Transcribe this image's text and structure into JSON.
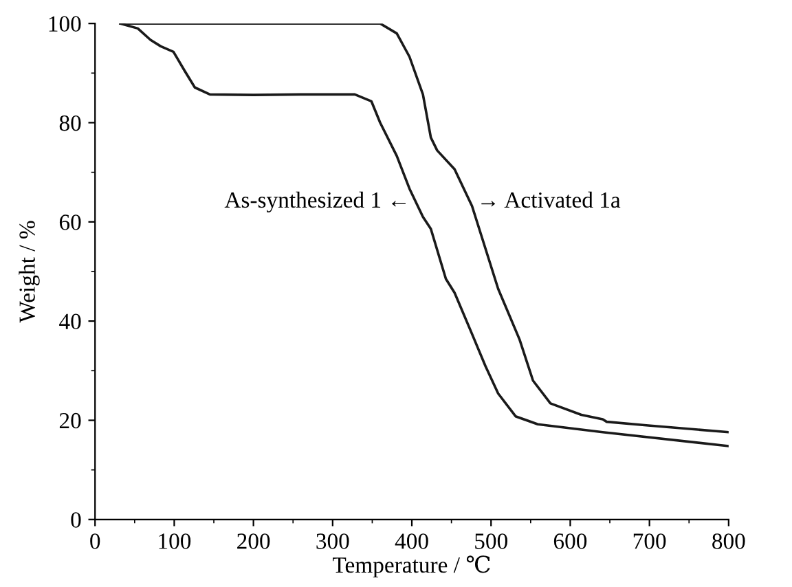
{
  "chart_data": {
    "type": "line",
    "xlabel": "Temperature / ℃",
    "ylabel": "Weight / %",
    "xlim": [
      0,
      800
    ],
    "xticks": [
      0,
      100,
      200,
      300,
      400,
      500,
      600,
      700,
      800
    ],
    "ylim": [
      0,
      100
    ],
    "yticks": [
      0,
      20,
      40,
      60,
      80,
      100
    ],
    "grid": false,
    "legend": false,
    "marker": "none",
    "line_style": "solid",
    "series": [
      {
        "color": "#1a1a1a",
        "x": [
          32,
          54,
          70,
          83,
          99,
          113,
          126,
          145,
          200,
          260,
          328,
          349,
          360,
          381,
          397,
          414,
          424,
          443,
          454,
          476,
          493,
          509,
          531,
          559,
          641,
          800
        ],
        "values": [
          100,
          99,
          96.7,
          95.4,
          94.3,
          90.5,
          87.1,
          85.7,
          85.6,
          85.7,
          85.7,
          84.3,
          80,
          73.3,
          66.7,
          61,
          58.6,
          48.5,
          45.7,
          37.4,
          30.9,
          25.4,
          20.8,
          19.2,
          17.6,
          14.8
        ]
      },
      {
        "color": "#1a1a1a",
        "x": [
          32,
          100,
          200,
          300,
          360,
          381,
          397,
          414,
          424,
          432,
          454,
          476,
          509,
          536,
          553,
          575,
          614,
          641,
          646,
          696,
          800
        ],
        "values": [
          100,
          100,
          100,
          100,
          100,
          98,
          93.3,
          85.7,
          77,
          74.4,
          70.6,
          63.2,
          46.5,
          36.3,
          28,
          23.4,
          21.1,
          20.2,
          19.7,
          19,
          17.6
        ]
      }
    ],
    "annotations": [
      {
        "text": "As-synthesized 1 ←",
        "x": 398,
        "y": 64
      },
      {
        "text": "→ Activated 1a",
        "x": 482,
        "y": 64
      }
    ]
  }
}
